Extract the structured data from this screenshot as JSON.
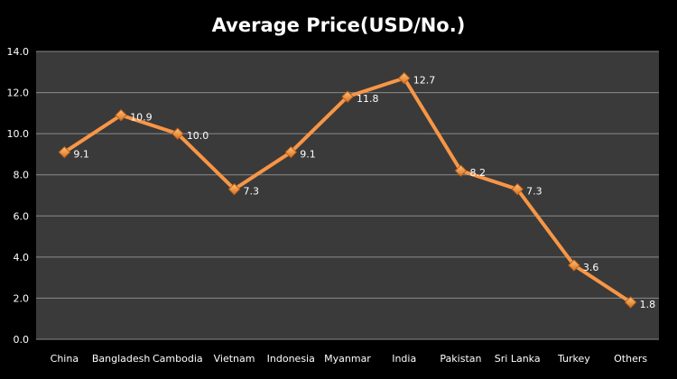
{
  "chart_data": {
    "type": "line",
    "title": "Average Price(USD/No.)",
    "xlabel": "",
    "ylabel": "",
    "categories": [
      "China",
      "Bangladesh",
      "Cambodia",
      "Vietnam",
      "Indonesia",
      "Myanmar",
      "India",
      "Pakistan",
      "Sri Lanka",
      "Turkey",
      "Others"
    ],
    "series": [
      {
        "values": [
          9.1,
          10.9,
          10.0,
          7.3,
          9.1,
          11.8,
          12.7,
          8.2,
          7.3,
          3.6,
          1.8
        ],
        "data_labels": [
          "9.1",
          "10.9",
          "10.0",
          "7.3",
          "9.1",
          "11.8",
          "12.7",
          "8.2",
          "7.3",
          "3.6",
          "1.8"
        ],
        "color": "#F79646",
        "marker": "diamond"
      }
    ],
    "ylim": [
      0,
      14
    ],
    "yticks": [
      "0.0",
      "2.0",
      "4.0",
      "6.0",
      "8.0",
      "10.0",
      "12.0",
      "14.0"
    ],
    "grid": true,
    "legend": "none",
    "colors": {
      "background": "#000000",
      "plot_area": "#3a3a3a",
      "gridline": "#8a8a8a",
      "text": "#ffffff",
      "line": "#F79646"
    }
  }
}
